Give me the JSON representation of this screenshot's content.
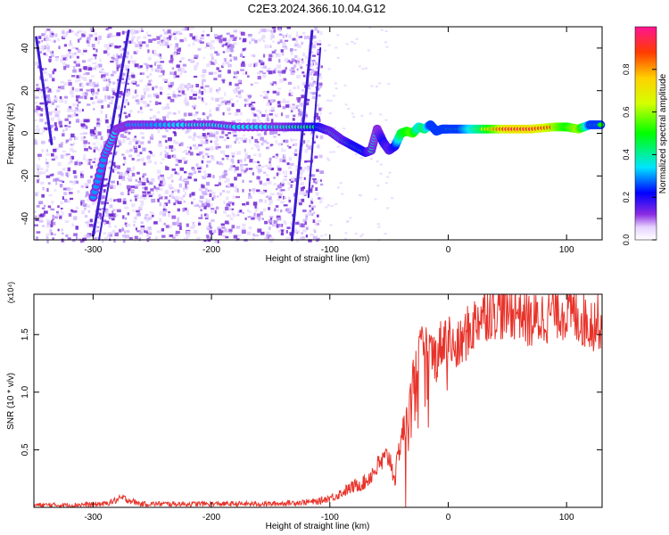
{
  "title": "C2E3.2024.366.10.04.G12",
  "chart_data": [
    {
      "type": "heatmap",
      "xlabel": "Height of straight line (km)",
      "ylabel": "Frequency (Hz)",
      "xlim": [
        -350,
        130
      ],
      "ylim": [
        -50,
        50
      ],
      "xticks": [
        -300,
        -200,
        -100,
        0,
        100
      ],
      "yticks": [
        -40,
        -20,
        0,
        20,
        40
      ],
      "colorbar": {
        "label": "Normalized spectral amplitude",
        "range": [
          0,
          1
        ],
        "ticks": [
          "0.0",
          "0.2",
          "0.4",
          "0.6",
          "0.8"
        ]
      },
      "signal_trace": {
        "x": [
          -300,
          -290,
          -280,
          -270,
          -250,
          -220,
          -200,
          -180,
          -150,
          -130,
          -110,
          -100,
          -90,
          -80,
          -70,
          -65,
          -60,
          -55,
          -50,
          -45,
          -40,
          -35,
          -30,
          -25,
          -20,
          -15,
          -10,
          -5,
          0,
          10,
          20,
          30,
          50,
          70,
          90,
          100,
          110,
          120,
          130
        ],
        "y": [
          -30,
          -10,
          2,
          4,
          4,
          4,
          4,
          3,
          3,
          3,
          3,
          1,
          -3,
          -6,
          -9,
          -8,
          2,
          -4,
          -8,
          -6,
          0,
          1,
          0,
          3,
          2,
          4,
          1,
          2,
          2,
          2,
          2,
          2,
          2,
          2,
          3,
          3,
          2,
          4,
          4
        ],
        "amplitude": [
          0.3,
          0.3,
          0.35,
          0.3,
          0.3,
          0.35,
          0.35,
          0.35,
          0.35,
          0.4,
          0.45,
          0.4,
          0.4,
          0.45,
          0.45,
          0.4,
          0.35,
          0.45,
          0.4,
          0.45,
          0.7,
          0.75,
          0.8,
          0.6,
          0.7,
          0.5,
          0.5,
          0.5,
          0.5,
          0.5,
          0.6,
          0.7,
          0.95,
          0.95,
          0.85,
          0.75,
          0.85,
          0.5,
          0.5
        ]
      }
    },
    {
      "type": "line",
      "xlabel": "Height of straight line (km)",
      "ylabel": "SNR (10 * v/v)",
      "scale_note": "(x10⁴)",
      "xlim": [
        -350,
        130
      ],
      "ylim": [
        0,
        1.85
      ],
      "xticks": [
        -300,
        -200,
        -100,
        0,
        100
      ],
      "yticks": [
        "0.5",
        "1.0",
        "1.5"
      ],
      "series": [
        {
          "color": "#e8332a",
          "x": [
            -350,
            -320,
            -290,
            -275,
            -260,
            -200,
            -150,
            -110,
            -95,
            -80,
            -70,
            -60,
            -50,
            -45,
            -40,
            -35,
            -30,
            -25,
            -20,
            -15,
            -10,
            -5,
            0,
            5,
            10,
            15,
            20,
            25,
            30,
            40,
            50,
            60,
            70,
            80,
            90,
            100,
            110,
            120,
            130
          ],
          "y": [
            0.02,
            0.02,
            0.03,
            0.08,
            0.03,
            0.03,
            0.03,
            0.05,
            0.1,
            0.18,
            0.22,
            0.35,
            0.45,
            0.25,
            0.6,
            0.75,
            1.1,
            1.3,
            1.4,
            1.35,
            1.3,
            1.45,
            1.5,
            1.35,
            1.4,
            1.5,
            1.55,
            1.65,
            1.7,
            1.72,
            1.7,
            1.72,
            1.6,
            1.65,
            1.72,
            1.7,
            1.65,
            1.6,
            1.62
          ]
        }
      ]
    }
  ]
}
